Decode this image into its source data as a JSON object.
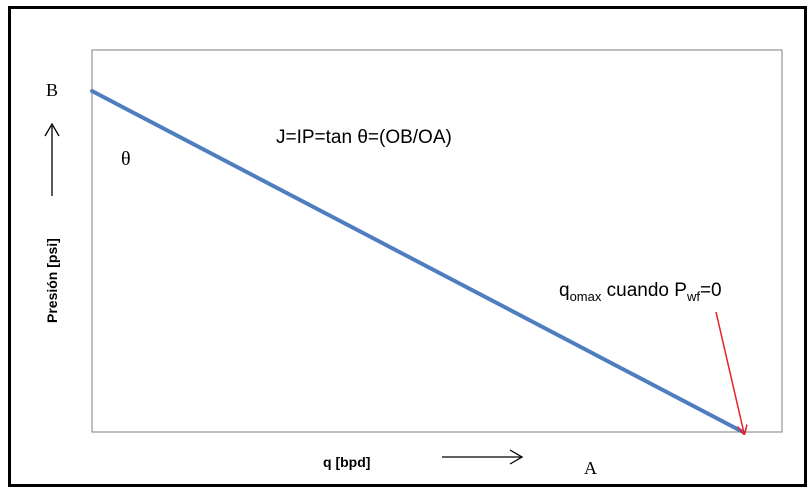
{
  "chart_data": {
    "type": "line",
    "title": "",
    "xlabel": "q [bpd]",
    "ylabel": "Presión [psi]",
    "point_labels": {
      "y_intercept": "B",
      "x_intercept": "A",
      "angle": "θ"
    },
    "annotations": {
      "formula": "J=IP=tan θ=(OB/OA)",
      "qomax_q": "q",
      "qomax_sub": "omax",
      "qomax_mid": " cuando P",
      "qomax_sub2": "wf",
      "qomax_end": "=0"
    },
    "series": [
      {
        "x": [
          0,
          1
        ],
        "y": [
          1,
          0
        ]
      }
    ],
    "xlim": [
      0,
      1
    ],
    "ylim": [
      0,
      1
    ],
    "grid": false,
    "colors": {
      "line": "#4f7ec0",
      "pointer_arrow": "#e8202a",
      "frame": "#000000"
    }
  }
}
